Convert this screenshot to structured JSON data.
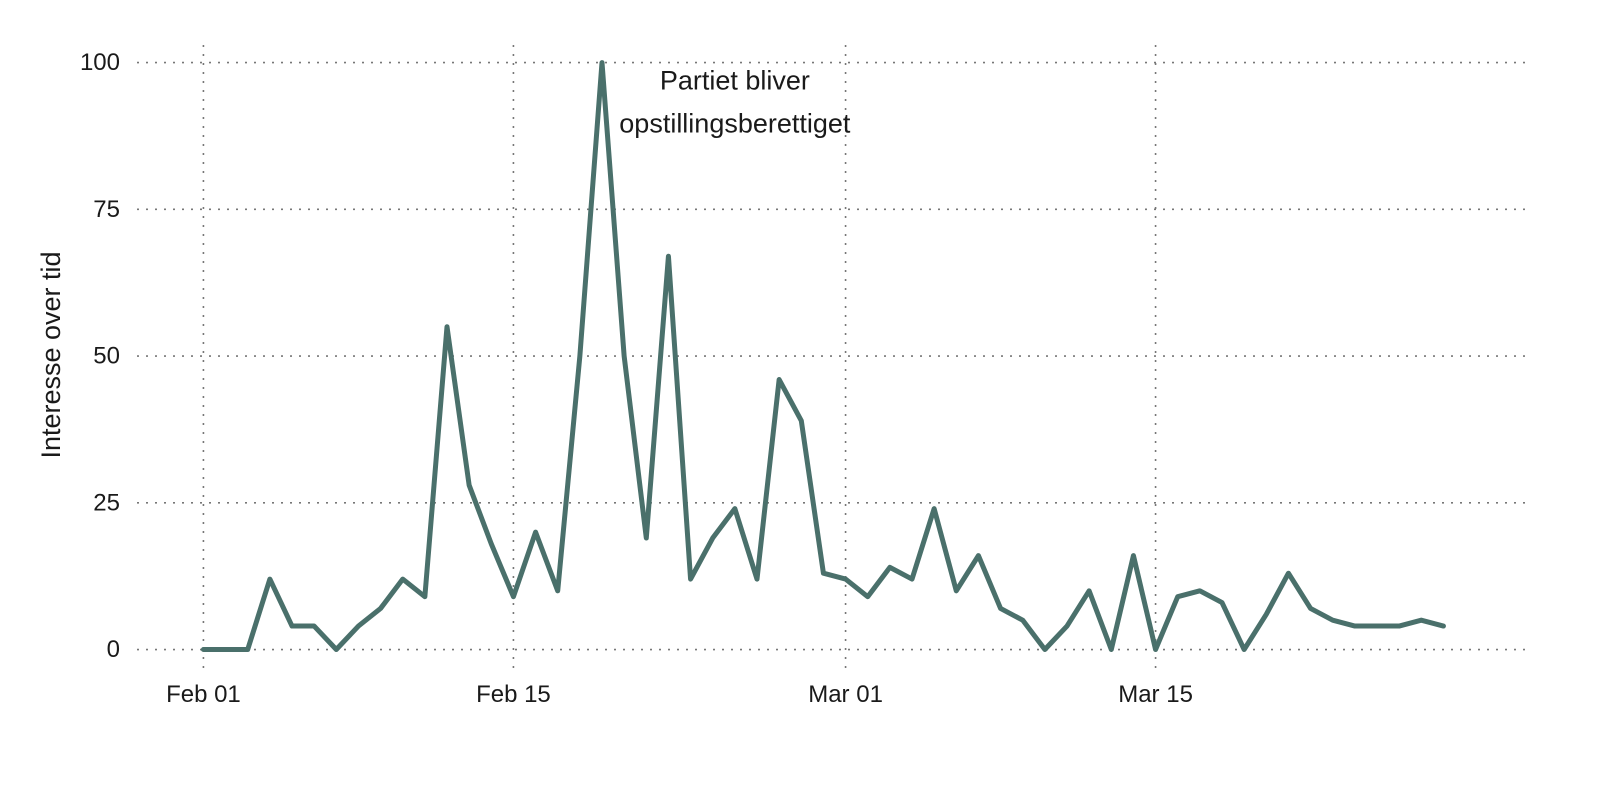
{
  "chart_data": {
    "type": "line",
    "title": "",
    "xlabel": "",
    "ylabel": "Interesse over tid",
    "x_start": "2020-02-01",
    "x_end": "2020-03-28",
    "xlim": [
      "2020-01-29",
      "2020-04-01"
    ],
    "ylim": [
      -4,
      103
    ],
    "x_ticks": [
      {
        "date": "2020-02-01",
        "label": "Feb 01"
      },
      {
        "date": "2020-02-15",
        "label": "Feb 15"
      },
      {
        "date": "2020-03-01",
        "label": "Mar 01"
      },
      {
        "date": "2020-03-15",
        "label": "Mar 15"
      }
    ],
    "y_ticks": [
      0,
      25,
      50,
      75,
      100
    ],
    "grid": true,
    "grid_style": "dotted",
    "series": [
      {
        "color": "#4a706b",
        "x": [
          "2020-02-01",
          "2020-02-02",
          "2020-02-03",
          "2020-02-04",
          "2020-02-05",
          "2020-02-06",
          "2020-02-07",
          "2020-02-08",
          "2020-02-09",
          "2020-02-10",
          "2020-02-11",
          "2020-02-12",
          "2020-02-13",
          "2020-02-14",
          "2020-02-15",
          "2020-02-16",
          "2020-02-17",
          "2020-02-18",
          "2020-02-19",
          "2020-02-20",
          "2020-02-21",
          "2020-02-22",
          "2020-02-23",
          "2020-02-24",
          "2020-02-25",
          "2020-02-26",
          "2020-02-27",
          "2020-02-28",
          "2020-02-29",
          "2020-03-01",
          "2020-03-02",
          "2020-03-03",
          "2020-03-04",
          "2020-03-05",
          "2020-03-06",
          "2020-03-07",
          "2020-03-08",
          "2020-03-09",
          "2020-03-10",
          "2020-03-11",
          "2020-03-12",
          "2020-03-13",
          "2020-03-14",
          "2020-03-15",
          "2020-03-16",
          "2020-03-17",
          "2020-03-18",
          "2020-03-19",
          "2020-03-20",
          "2020-03-21",
          "2020-03-22",
          "2020-03-23",
          "2020-03-24",
          "2020-03-25",
          "2020-03-26",
          "2020-03-27",
          "2020-03-28"
        ],
        "values": [
          0,
          0,
          0,
          12,
          4,
          4,
          0,
          4,
          7,
          12,
          9,
          55,
          28,
          18,
          9,
          20,
          10,
          50,
          100,
          50,
          19,
          67,
          12,
          19,
          24,
          12,
          46,
          39,
          13,
          12,
          9,
          14,
          12,
          24,
          10,
          16,
          7,
          5,
          0,
          4,
          10,
          0,
          16,
          0,
          9,
          10,
          8,
          0,
          6,
          13,
          7,
          5,
          4,
          4,
          4,
          5,
          4
        ]
      }
    ],
    "annotations": [
      {
        "lines": [
          "Partiet bliver",
          "opstillingsberettiget"
        ],
        "x": "2020-02-25",
        "y": 100
      }
    ]
  }
}
